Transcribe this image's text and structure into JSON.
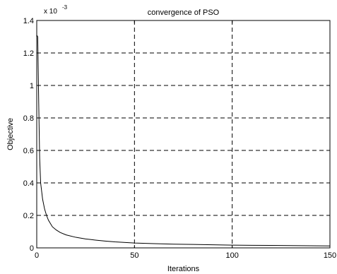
{
  "chart_data": {
    "type": "line",
    "title": "convergence of PSO",
    "xlabel": "Iterations",
    "ylabel": "Objective",
    "y_exponent_label": "x 10",
    "y_exponent_power": "-3",
    "xlim": [
      0,
      150
    ],
    "ylim": [
      0,
      1.4
    ],
    "x_ticks": [
      0,
      50,
      100,
      150
    ],
    "y_ticks": [
      0,
      0.2,
      0.4,
      0.6,
      0.8,
      1,
      1.2,
      1.4
    ],
    "x_tick_labels": [
      "0",
      "50",
      "100",
      "150"
    ],
    "y_tick_labels": [
      "0",
      "0.2",
      "0.4",
      "0.6",
      "0.8",
      "1",
      "1.2",
      "1.4"
    ],
    "grid": true,
    "grid_style": "dashed",
    "series": [
      {
        "color": "#000000",
        "x": [
          0,
          0.5,
          1,
          1.5,
          2,
          3,
          4,
          5,
          6,
          8,
          10,
          12,
          15,
          20,
          25,
          30,
          35,
          40,
          50,
          60,
          70,
          80,
          90,
          100,
          110,
          120,
          130,
          140,
          150
        ],
        "y": [
          1.31,
          1.3,
          0.9,
          0.55,
          0.4,
          0.3,
          0.24,
          0.2,
          0.17,
          0.13,
          0.11,
          0.095,
          0.08,
          0.065,
          0.055,
          0.048,
          0.042,
          0.037,
          0.03,
          0.026,
          0.023,
          0.021,
          0.019,
          0.017,
          0.016,
          0.015,
          0.014,
          0.013,
          0.012
        ]
      }
    ]
  }
}
